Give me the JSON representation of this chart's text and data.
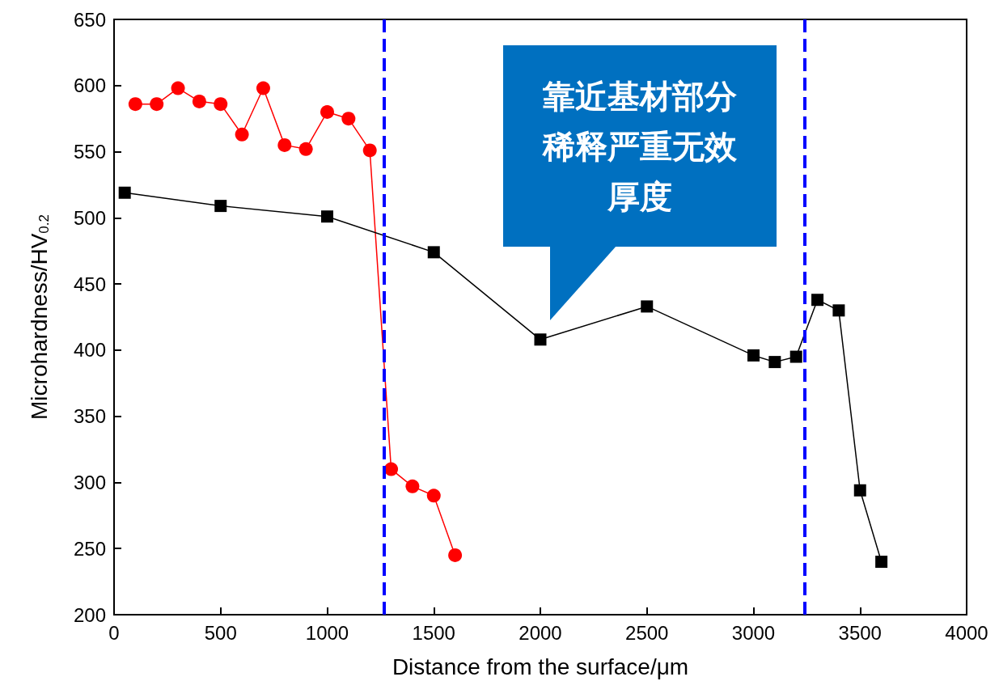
{
  "chart_data": {
    "type": "line",
    "xlabel": "Distance from the surface/μm",
    "ylabel": "Microhardness/HV$_{0.2}$",
    "xlim": [
      0,
      4000
    ],
    "xticks": [
      0,
      500,
      1000,
      1500,
      2000,
      2500,
      3000,
      3500,
      4000
    ],
    "ylim": [
      200,
      650
    ],
    "yticks": [
      200,
      250,
      300,
      350,
      400,
      450,
      500,
      550,
      600,
      650
    ],
    "grid": false,
    "line_style": "solid",
    "series": [
      {
        "color": "#ff0000",
        "marker": "circle",
        "x": [
          100,
          200,
          300,
          400,
          500,
          600,
          700,
          800,
          900,
          1000,
          1100,
          1200,
          1300,
          1400,
          1500,
          1600
        ],
        "values": [
          586,
          586,
          598,
          588,
          586,
          563,
          598,
          555,
          552,
          580,
          575,
          551,
          310,
          297,
          290,
          245
        ]
      },
      {
        "color": "#000000",
        "marker": "square",
        "x": [
          50,
          500,
          1000,
          1500,
          2000,
          2500,
          3000,
          3100,
          3200,
          3300,
          3400,
          3500,
          3600
        ],
        "values": [
          519,
          509,
          501,
          474,
          408,
          433,
          396,
          391,
          395,
          438,
          430,
          294,
          240
        ]
      }
    ],
    "ref_lines": [
      {
        "axis": "x",
        "value": 1265,
        "color": "#0000ff",
        "line_style": "dashed"
      },
      {
        "axis": "x",
        "value": 3240,
        "color": "#0000ff",
        "line_style": "dashed"
      }
    ],
    "annotations": [
      "靠近基材部分稀释严重无效厚度"
    ]
  }
}
